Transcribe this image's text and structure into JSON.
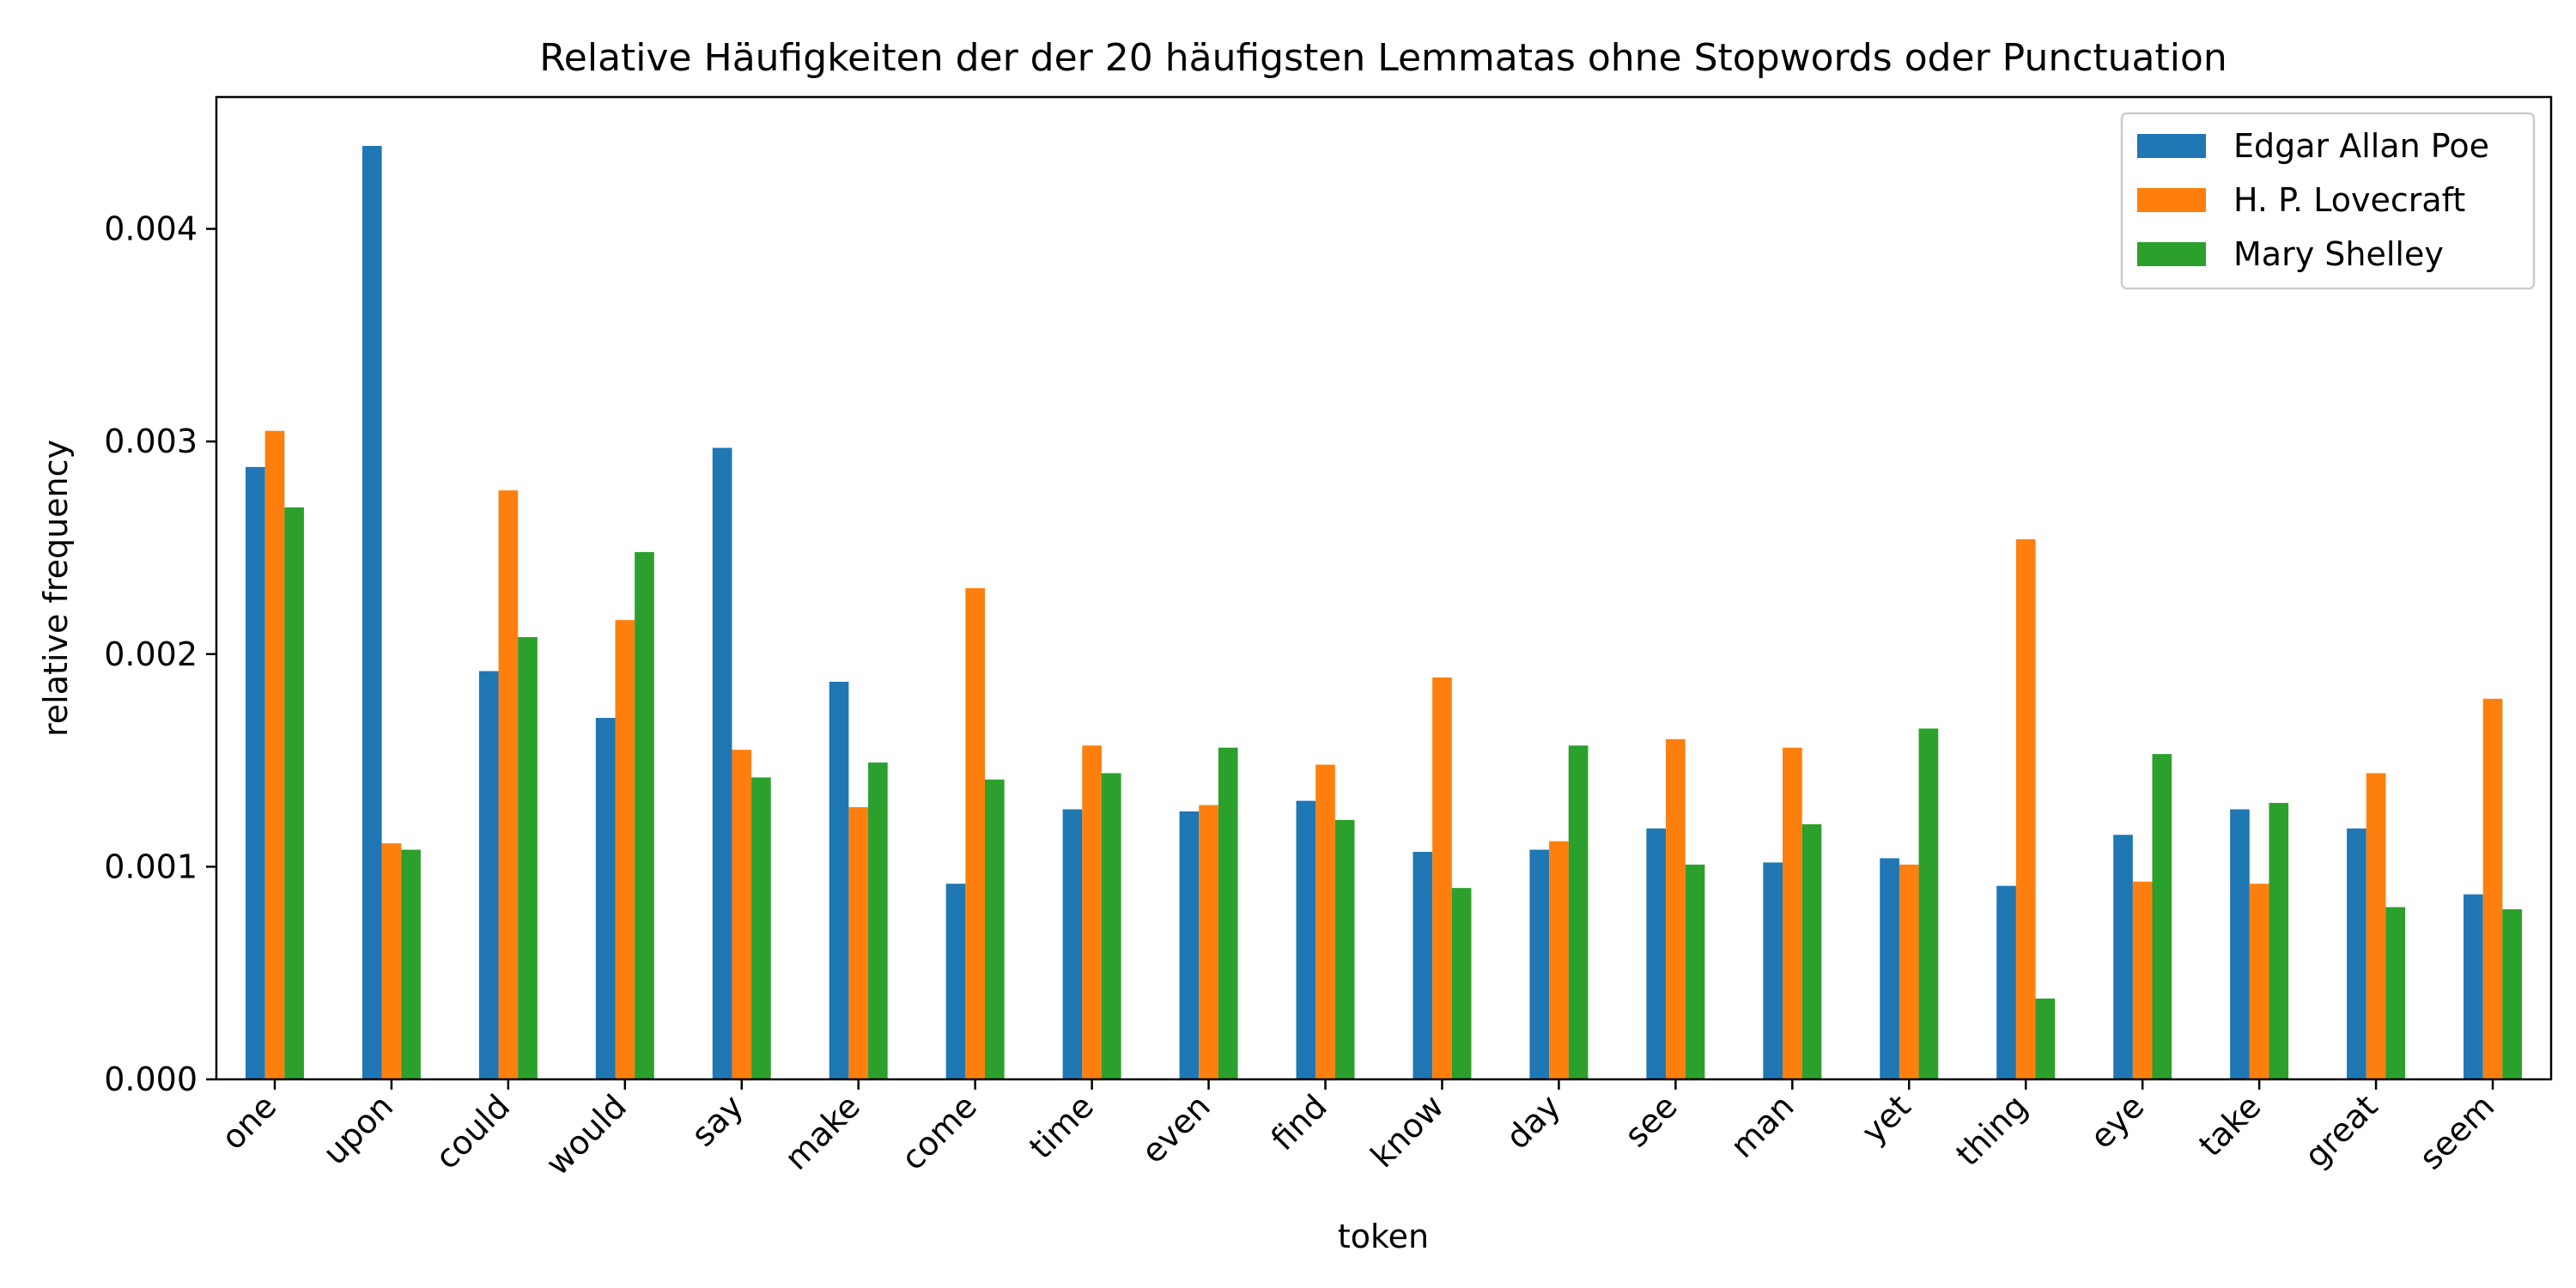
{
  "chart_data": {
    "type": "bar",
    "title": "Relative Häufigkeiten der der 20 häufigsten Lemmatas ohne Stopwords oder Punctuation",
    "xlabel": "token",
    "ylabel": "relative frequency",
    "ylim": [
      0,
      0.00462
    ],
    "yticks": [
      "0.000",
      "0.001",
      "0.002",
      "0.003",
      "0.004"
    ],
    "ytick_values": [
      0,
      0.001,
      0.002,
      0.003,
      0.004
    ],
    "grid": false,
    "legend_position": "top-right",
    "categories": [
      "one",
      "upon",
      "could",
      "would",
      "say",
      "make",
      "come",
      "time",
      "even",
      "find",
      "know",
      "day",
      "see",
      "man",
      "yet",
      "thing",
      "eye",
      "take",
      "great",
      "seem"
    ],
    "series": [
      {
        "name": "Edgar Allan Poe",
        "color": "#1f77b4",
        "values": [
          0.00288,
          0.00439,
          0.00192,
          0.0017,
          0.00297,
          0.00187,
          0.00092,
          0.00127,
          0.00126,
          0.00131,
          0.00107,
          0.00108,
          0.00118,
          0.00102,
          0.00104,
          0.00091,
          0.00115,
          0.00127,
          0.00118,
          0.00087
        ]
      },
      {
        "name": "H. P. Lovecraft",
        "color": "#ff7f0e",
        "values": [
          0.00305,
          0.00111,
          0.00277,
          0.00216,
          0.00155,
          0.00128,
          0.00231,
          0.00157,
          0.00129,
          0.00148,
          0.00189,
          0.00112,
          0.0016,
          0.00156,
          0.00101,
          0.00254,
          0.00093,
          0.00092,
          0.00144,
          0.00179
        ]
      },
      {
        "name": "Mary Shelley",
        "color": "#2ca02c",
        "values": [
          0.00269,
          0.00108,
          0.00208,
          0.00248,
          0.00142,
          0.00149,
          0.00141,
          0.00144,
          0.00156,
          0.00122,
          0.0009,
          0.00157,
          0.00101,
          0.0012,
          0.00165,
          0.00038,
          0.00153,
          0.0013,
          0.00081,
          0.0008
        ]
      }
    ]
  }
}
